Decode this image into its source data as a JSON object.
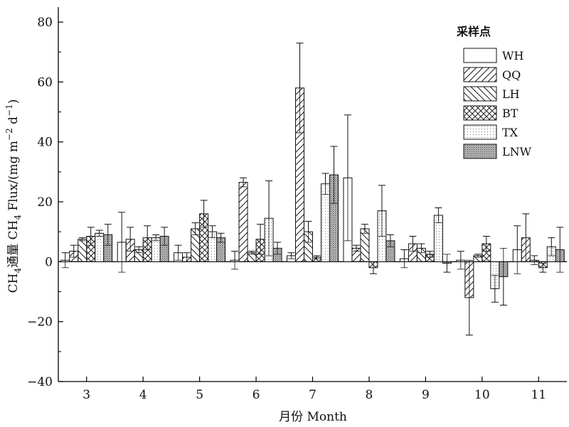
{
  "chart_data": {
    "type": "bar",
    "xlabel": "月份 Month",
    "ylabel_prefix": "CH",
    "ylabel_sub": "4",
    "ylabel_main": "通量 CH",
    "ylabel_sub2": "4",
    "ylabel_tail": " Flux/(mg m",
    "ylabel_sup1": "−2",
    "ylabel_mid": " d",
    "ylabel_sup2": "−1",
    "ylabel_end": ")",
    "ylim": [
      -40,
      85
    ],
    "yticks": [
      -40,
      -20,
      0,
      20,
      40,
      60,
      80
    ],
    "ytick_labels": [
      "−40",
      "−20",
      "0",
      "20",
      "40",
      "60",
      "80"
    ],
    "categories": [
      "3",
      "4",
      "5",
      "6",
      "7",
      "8",
      "9",
      "10",
      "11"
    ],
    "legend_title": "采样点",
    "legend_position": "top-right",
    "grid": false,
    "series": [
      {
        "name": "WH",
        "pattern": "none",
        "values": [
          0.5,
          6.5,
          3,
          0.5,
          2,
          28,
          1,
          0.5,
          4
        ],
        "errors": [
          2.5,
          10,
          2.5,
          3,
          1,
          21,
          3,
          3,
          8
        ]
      },
      {
        "name": "QQ",
        "pattern": "slash",
        "values": [
          3.5,
          7.5,
          1.5,
          26.5,
          58,
          4.5,
          6,
          -12,
          8
        ],
        "errors": [
          2,
          4,
          1.5,
          1.5,
          15,
          1,
          2.5,
          12.5,
          8
        ]
      },
      {
        "name": "LH",
        "pattern": "backslash",
        "values": [
          7.5,
          4,
          11,
          3,
          10,
          11,
          4.5,
          2,
          0.5
        ],
        "errors": [
          0.5,
          1,
          2,
          0.5,
          3.5,
          1.5,
          1.5,
          0.5,
          1.5
        ]
      },
      {
        "name": "BT",
        "pattern": "cross",
        "values": [
          8.5,
          8,
          16,
          7.5,
          1.5,
          -2,
          2.5,
          6,
          -2
        ],
        "errors": [
          3,
          4,
          4.5,
          5,
          0.5,
          2,
          1,
          2.5,
          1.5
        ]
      },
      {
        "name": "TX",
        "pattern": "dots",
        "values": [
          9.5,
          8,
          10,
          14.5,
          26,
          17,
          15.5,
          -9,
          5
        ],
        "errors": [
          1,
          1,
          2,
          12.5,
          3.5,
          8.5,
          2.5,
          4.5,
          3
        ]
      },
      {
        "name": "LNW",
        "pattern": "dense",
        "values": [
          9,
          8.5,
          8,
          4.5,
          29,
          7,
          -0.5,
          -5,
          4
        ],
        "errors": [
          3.5,
          3,
          1.5,
          2,
          9.5,
          2,
          3,
          9.5,
          7.5
        ]
      }
    ]
  }
}
